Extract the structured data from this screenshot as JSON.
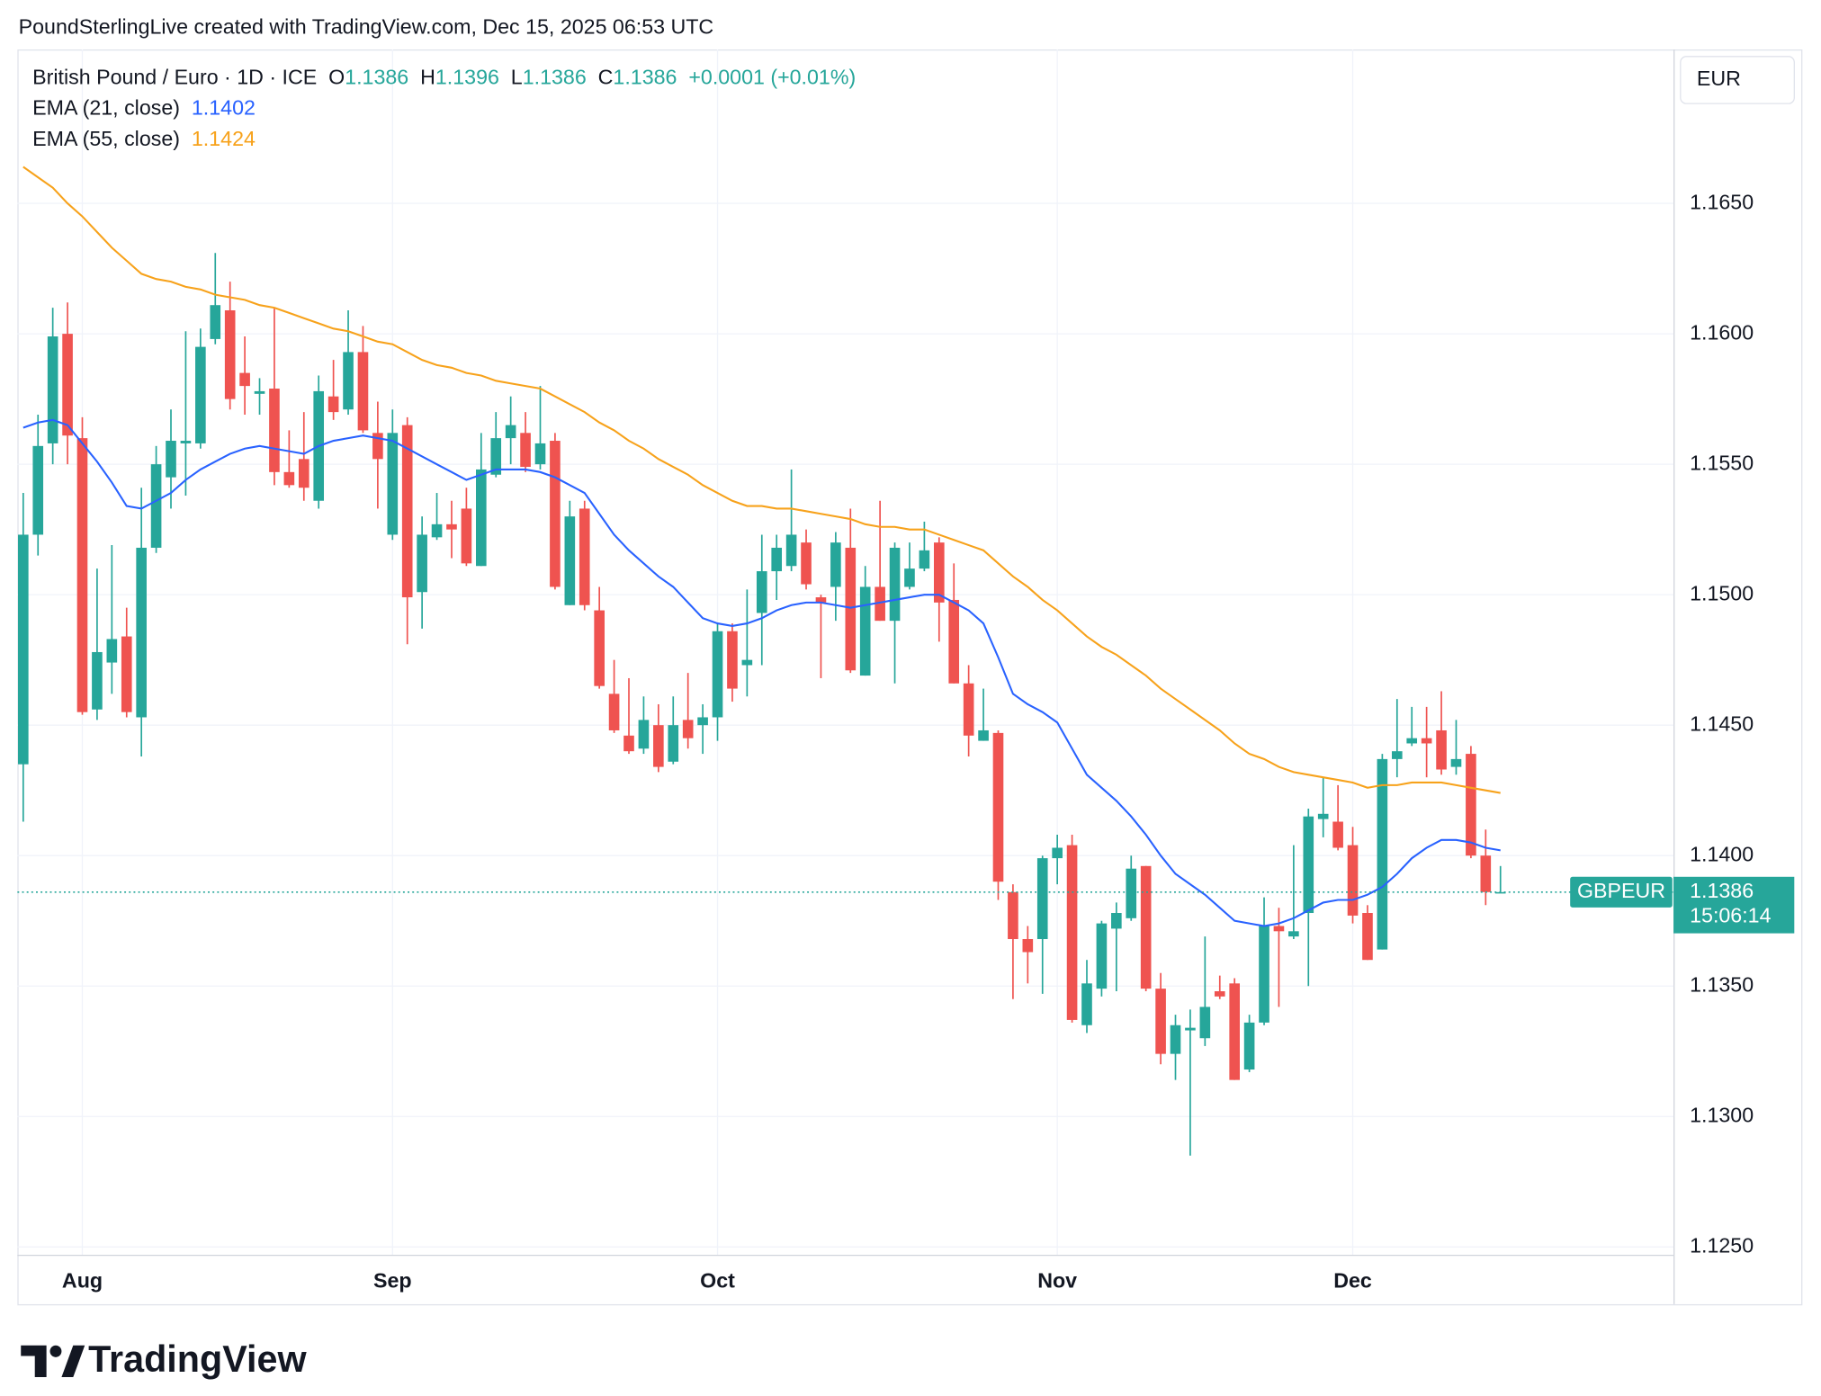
{
  "header": "PoundSterlingLive created with TradingView.com, Dec 15, 2025 06:53 UTC",
  "branding": "TradingView",
  "chart_data": {
    "type": "candlestick",
    "title": "British Pound / Euro · 1D · ICE",
    "ohlc": [
      {
        "label": "O",
        "value": 1.1386
      },
      {
        "label": "H",
        "value": 1.1396
      },
      {
        "label": "L",
        "value": 1.1386
      },
      {
        "label": "C",
        "value": 1.1386
      }
    ],
    "change": "+0.0001 (+0.01%)",
    "currency": "EUR",
    "symbol": "GBPEUR",
    "last_price": 1.1386,
    "countdown": "15:06:14",
    "categories": [
      null,
      null,
      null,
      null,
      "Aug",
      null,
      null,
      null,
      null,
      null,
      null,
      null,
      null,
      null,
      null,
      null,
      null,
      null,
      null,
      null,
      null,
      null,
      null,
      null,
      null,
      "Sep",
      null,
      null,
      null,
      null,
      null,
      null,
      null,
      null,
      null,
      null,
      null,
      null,
      null,
      null,
      null,
      null,
      null,
      null,
      null,
      null,
      null,
      "Oct",
      null,
      null,
      null,
      null,
      null,
      null,
      null,
      null,
      null,
      null,
      null,
      null,
      null,
      null,
      null,
      null,
      null,
      null,
      null,
      null,
      null,
      null,
      "Nov",
      null,
      null,
      null,
      null,
      null,
      null,
      null,
      null,
      null,
      null,
      null,
      null,
      null,
      null,
      null,
      null,
      null,
      null,
      null,
      "Dec",
      null,
      null,
      null,
      null,
      null,
      null,
      null,
      null,
      null,
      null
    ],
    "ylim": [
      1.1247,
      1.1709
    ],
    "yticks": [
      {
        "value": 1.125,
        "label": "1.1250"
      },
      {
        "value": 1.13,
        "label": "1.1300"
      },
      {
        "value": 1.135,
        "label": "1.1350"
      },
      {
        "value": 1.14,
        "label": "1.1400"
      },
      {
        "value": 1.145,
        "label": "1.1450"
      },
      {
        "value": 1.15,
        "label": "1.1500"
      },
      {
        "value": 1.155,
        "label": "1.1550"
      },
      {
        "value": 1.16,
        "label": "1.1600"
      },
      {
        "value": 1.165,
        "label": "1.1650"
      }
    ],
    "grid": true,
    "series": [
      {
        "name": "British Pound / Euro · 1D · ICE",
        "type": "candlestick",
        "up_color": "#26a69a",
        "down_color": "#ef5350",
        "open": [
          1.1435,
          1.1523,
          1.1558,
          1.16,
          1.156,
          1.1456,
          1.1474,
          1.1484,
          1.1453,
          1.1518,
          1.1545,
          1.1558,
          1.1558,
          1.1598,
          1.1609,
          1.1585,
          1.1577,
          1.1579,
          1.1547,
          1.1552,
          1.1536,
          1.1576,
          1.1571,
          1.1593,
          1.1562,
          1.1523,
          1.1565,
          1.1501,
          1.1522,
          1.1527,
          1.1533,
          1.1511,
          1.1546,
          1.156,
          1.1562,
          1.155,
          1.1559,
          1.1496,
          1.1533,
          1.1494,
          1.1462,
          1.1446,
          1.1441,
          1.145,
          1.1436,
          1.1452,
          1.145,
          1.1453,
          1.1486,
          1.1473,
          1.1493,
          1.1509,
          1.1511,
          1.152,
          1.1499,
          1.1503,
          1.1518,
          1.1469,
          1.1503,
          1.149,
          1.1503,
          1.151,
          1.152,
          1.1498,
          1.1466,
          1.1444,
          1.1447,
          1.1386,
          1.1368,
          1.1368,
          1.1399,
          1.1404,
          1.1335,
          1.1349,
          1.1372,
          1.1376,
          1.1396,
          1.1349,
          1.1324,
          1.1333,
          1.133,
          1.1348,
          1.1351,
          1.1318,
          1.1336,
          1.1373,
          1.1369,
          1.1378,
          1.1414,
          1.1413,
          1.1404,
          1.1378,
          1.1364,
          1.1437,
          1.1443,
          1.1445,
          1.1448,
          1.1434,
          1.1439,
          1.14,
          1.1386
        ],
        "high": [
          1.1539,
          1.1569,
          1.161,
          1.1612,
          1.1568,
          1.151,
          1.1519,
          1.1495,
          1.1541,
          1.1557,
          1.1571,
          1.1601,
          1.1602,
          1.1631,
          1.162,
          1.1599,
          1.1583,
          1.161,
          1.1563,
          1.157,
          1.1584,
          1.159,
          1.1609,
          1.1603,
          1.1574,
          1.1571,
          1.1568,
          1.153,
          1.1539,
          1.1536,
          1.1541,
          1.1562,
          1.157,
          1.1576,
          1.157,
          1.158,
          1.1562,
          1.1536,
          1.1536,
          1.1503,
          1.1475,
          1.1468,
          1.1461,
          1.1458,
          1.1461,
          1.147,
          1.1458,
          1.1489,
          1.1489,
          1.1502,
          1.1523,
          1.1523,
          1.1548,
          1.1525,
          1.15,
          1.1524,
          1.1533,
          1.1511,
          1.1536,
          1.152,
          1.152,
          1.1528,
          1.1522,
          1.1512,
          1.1473,
          1.1464,
          1.1448,
          1.1389,
          1.1373,
          1.14,
          1.1408,
          1.1408,
          1.136,
          1.1375,
          1.1382,
          1.14,
          1.1396,
          1.1355,
          1.1339,
          1.1341,
          1.1369,
          1.1354,
          1.1353,
          1.1339,
          1.1384,
          1.138,
          1.1404,
          1.1418,
          1.143,
          1.1427,
          1.1411,
          1.1381,
          1.1439,
          1.146,
          1.1457,
          1.1457,
          1.1463,
          1.1452,
          1.1442,
          1.141,
          1.1396
        ],
        "low": [
          1.1413,
          1.1515,
          1.155,
          1.155,
          1.1454,
          1.1452,
          1.1462,
          1.1453,
          1.1438,
          1.1516,
          1.1533,
          1.1538,
          1.1556,
          1.1596,
          1.1571,
          1.1569,
          1.1569,
          1.1542,
          1.1541,
          1.1536,
          1.1533,
          1.1567,
          1.1569,
          1.1562,
          1.1533,
          1.1521,
          1.1481,
          1.1487,
          1.1521,
          1.1514,
          1.1511,
          1.1511,
          1.1545,
          1.155,
          1.1547,
          1.1548,
          1.1502,
          1.1496,
          1.1494,
          1.1464,
          1.1447,
          1.1439,
          1.1439,
          1.1432,
          1.1435,
          1.1441,
          1.1439,
          1.1444,
          1.1459,
          1.1461,
          1.1473,
          1.1498,
          1.1509,
          1.1502,
          1.1468,
          1.149,
          1.147,
          1.1469,
          1.149,
          1.1466,
          1.1502,
          1.1509,
          1.1482,
          1.1466,
          1.1438,
          1.1444,
          1.1383,
          1.1345,
          1.1351,
          1.1347,
          1.1389,
          1.1336,
          1.1332,
          1.1346,
          1.1348,
          1.1375,
          1.1348,
          1.132,
          1.1314,
          1.1285,
          1.1327,
          1.1345,
          1.1314,
          1.1317,
          1.1335,
          1.1342,
          1.1368,
          1.135,
          1.1407,
          1.1402,
          1.1374,
          1.136,
          1.1364,
          1.143,
          1.1442,
          1.143,
          1.1431,
          1.1431,
          1.1399,
          1.1381,
          1.1386
        ],
        "close": [
          1.1523,
          1.1557,
          1.1599,
          1.1561,
          1.1455,
          1.1478,
          1.1483,
          1.1455,
          1.1518,
          1.155,
          1.1559,
          1.1559,
          1.1595,
          1.1611,
          1.1575,
          1.158,
          1.1578,
          1.1547,
          1.1542,
          1.1541,
          1.1578,
          1.157,
          1.1593,
          1.1563,
          1.1552,
          1.1562,
          1.1499,
          1.1523,
          1.1527,
          1.1525,
          1.1512,
          1.1548,
          1.156,
          1.1565,
          1.1549,
          1.1558,
          1.1503,
          1.153,
          1.1496,
          1.1465,
          1.1448,
          1.144,
          1.1452,
          1.1434,
          1.145,
          1.1445,
          1.1453,
          1.1486,
          1.1464,
          1.1475,
          1.1509,
          1.1518,
          1.1523,
          1.1504,
          1.1497,
          1.152,
          1.1471,
          1.1503,
          1.149,
          1.1518,
          1.151,
          1.1517,
          1.1497,
          1.1466,
          1.1446,
          1.1448,
          1.139,
          1.1368,
          1.1363,
          1.1399,
          1.1403,
          1.1337,
          1.1351,
          1.1374,
          1.1378,
          1.1395,
          1.1349,
          1.1324,
          1.1335,
          1.1334,
          1.1342,
          1.1346,
          1.1314,
          1.1336,
          1.1373,
          1.1371,
          1.1371,
          1.1415,
          1.1416,
          1.1403,
          1.1377,
          1.136,
          1.1437,
          1.144,
          1.1445,
          1.1443,
          1.1433,
          1.1437,
          1.14,
          1.1386,
          1.1386
        ]
      },
      {
        "name": "EMA (21, close)",
        "type": "line",
        "color": "#2962ff",
        "last": 1.1402,
        "values": [
          1.1564,
          1.1566,
          1.1567,
          1.1565,
          1.1558,
          1.1551,
          1.1543,
          1.1534,
          1.1533,
          1.1536,
          1.1539,
          1.1544,
          1.1548,
          1.1551,
          1.1554,
          1.1556,
          1.1557,
          1.1556,
          1.1555,
          1.1554,
          1.1557,
          1.1559,
          1.156,
          1.1561,
          1.156,
          1.1559,
          1.1556,
          1.1553,
          1.155,
          1.1547,
          1.1544,
          1.1546,
          1.1548,
          1.1548,
          1.1548,
          1.1547,
          1.1545,
          1.1542,
          1.1539,
          1.1531,
          1.1523,
          1.1517,
          1.1512,
          1.1507,
          1.1503,
          1.1497,
          1.1491,
          1.1489,
          1.1488,
          1.1489,
          1.1491,
          1.1494,
          1.1496,
          1.1497,
          1.1497,
          1.1496,
          1.1495,
          1.1496,
          1.1497,
          1.1498,
          1.1499,
          1.15,
          1.15,
          1.1497,
          1.1494,
          1.1489,
          1.1476,
          1.1462,
          1.1458,
          1.1455,
          1.1451,
          1.1441,
          1.1431,
          1.1426,
          1.1421,
          1.1415,
          1.1408,
          1.14,
          1.1393,
          1.1389,
          1.1385,
          1.138,
          1.1375,
          1.1374,
          1.1373,
          1.1374,
          1.1376,
          1.1379,
          1.1382,
          1.1383,
          1.1383,
          1.1385,
          1.1388,
          1.1393,
          1.1399,
          1.1403,
          1.1406,
          1.1406,
          1.1405,
          1.1403,
          1.1402
        ]
      },
      {
        "name": "EMA (55, close)",
        "type": "line",
        "color": "#f7a21b",
        "last": 1.1424,
        "values": [
          1.1664,
          1.166,
          1.1656,
          1.165,
          1.1645,
          1.1639,
          1.1633,
          1.1628,
          1.1623,
          1.1621,
          1.162,
          1.1618,
          1.1617,
          1.1615,
          1.1614,
          1.1613,
          1.1611,
          1.161,
          1.1608,
          1.1606,
          1.1604,
          1.1602,
          1.1601,
          1.1599,
          1.1597,
          1.1596,
          1.1593,
          1.159,
          1.1588,
          1.1587,
          1.1585,
          1.1584,
          1.1582,
          1.1581,
          1.158,
          1.1579,
          1.1576,
          1.1573,
          1.157,
          1.1566,
          1.1563,
          1.1559,
          1.1556,
          1.1552,
          1.1549,
          1.1546,
          1.1542,
          1.1539,
          1.1536,
          1.1534,
          1.1534,
          1.1533,
          1.1533,
          1.1532,
          1.1531,
          1.153,
          1.1529,
          1.1527,
          1.1526,
          1.1526,
          1.1525,
          1.1525,
          1.1523,
          1.1521,
          1.1519,
          1.1517,
          1.1512,
          1.1507,
          1.1503,
          1.1498,
          1.1494,
          1.1489,
          1.1484,
          1.148,
          1.1477,
          1.1473,
          1.1469,
          1.1464,
          1.146,
          1.1456,
          1.1452,
          1.1448,
          1.1443,
          1.1439,
          1.1437,
          1.1434,
          1.1432,
          1.1431,
          1.143,
          1.1429,
          1.1428,
          1.1426,
          1.1427,
          1.1427,
          1.1428,
          1.1428,
          1.1428,
          1.1427,
          1.1426,
          1.1425,
          1.1424
        ]
      }
    ]
  }
}
